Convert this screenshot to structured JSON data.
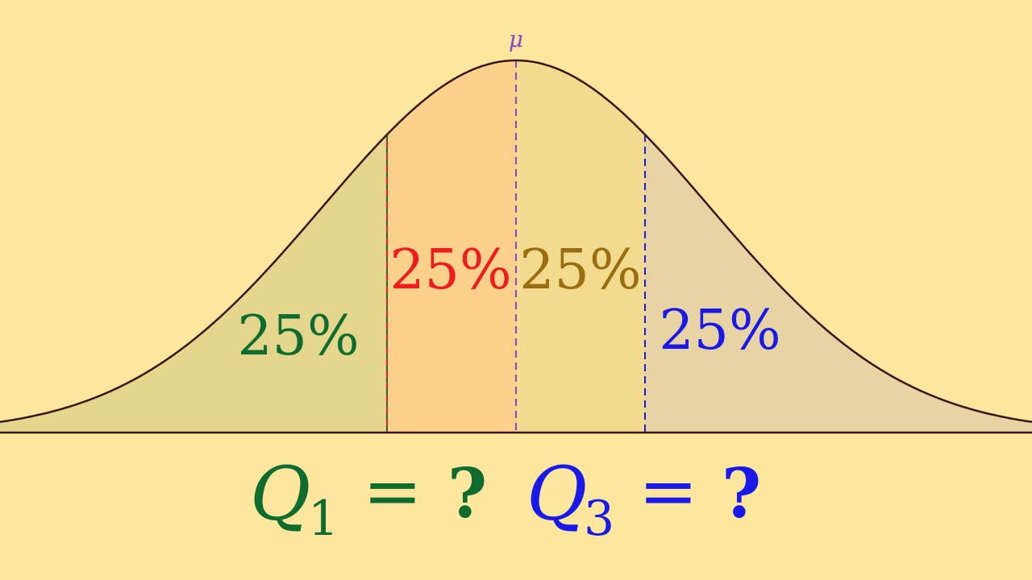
{
  "colors": {
    "background": "#fde69d",
    "curve": "#3a1515",
    "region_1": "#e4d68c",
    "region_2": "#fdd08c",
    "region_3": "#f2da8e",
    "region_4": "#e8d3a4",
    "q1_color": "#0f6b2e",
    "median_color": "#8a44c8",
    "q2_text": "#ee1c1c",
    "q3_left_text": "#9a6e10",
    "q3_color": "#1a1ae8"
  },
  "labels": {
    "mean": "μ",
    "region_1": "25%",
    "region_2": "25%",
    "region_3": "25%",
    "region_4": "25%"
  },
  "equations": {
    "q1": {
      "var": "Q",
      "sub": "1",
      "op": "=",
      "value": "?"
    },
    "q3": {
      "var": "Q",
      "sub": "3",
      "op": "=",
      "value": "?"
    }
  }
}
